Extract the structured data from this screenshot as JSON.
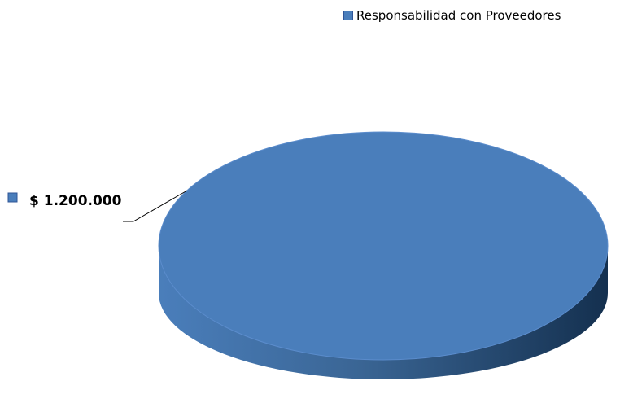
{
  "chart_data": {
    "type": "pie",
    "title": "",
    "series": [
      {
        "name": "Responsabilidad con Proveedores",
        "value": 1200000,
        "label": "$ 1.200.000",
        "color": "#4a7ebb"
      }
    ],
    "legend_position": "top-right",
    "three_d": true
  },
  "colors": {
    "slice": "#4a7ebb",
    "slice_dark": "#1d3a5c"
  }
}
